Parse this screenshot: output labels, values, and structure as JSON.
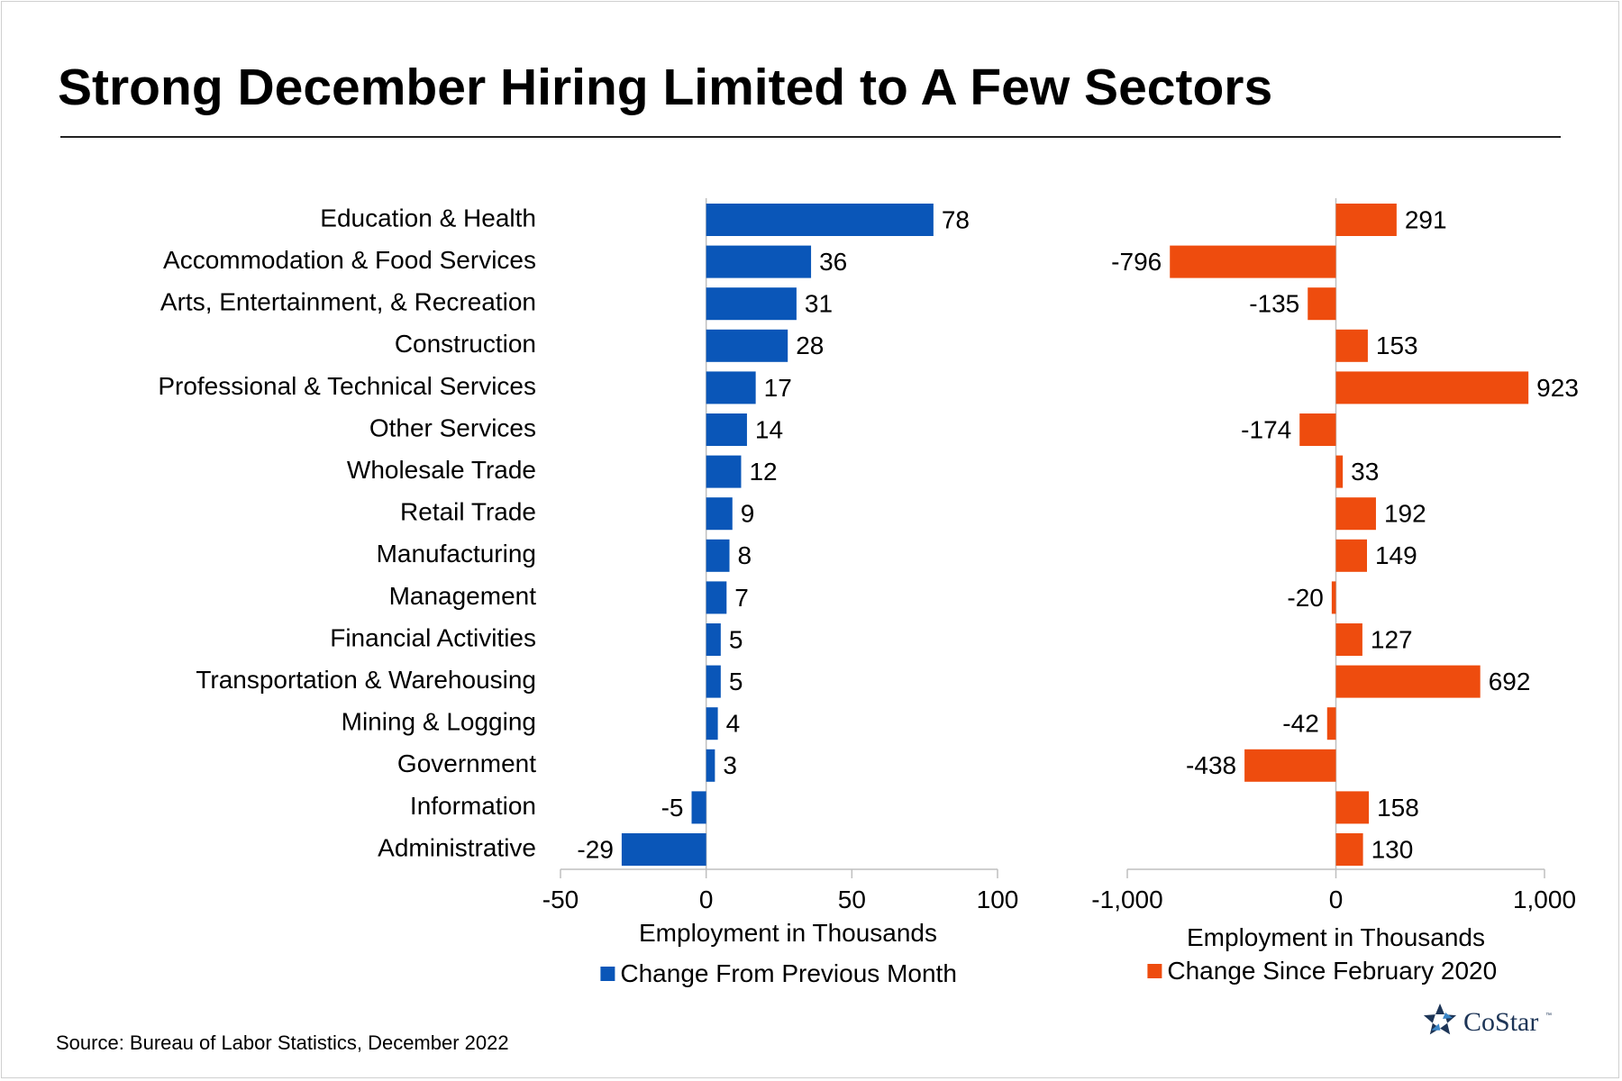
{
  "title": "Strong December Hiring Limited to A Few Sectors",
  "source": "Source: Bureau of Labor Statistics, December 2022",
  "logo_text": "CoStar",
  "logo_tm": "™",
  "chart_data": [
    {
      "type": "bar",
      "orientation": "horizontal",
      "categories": [
        "Education & Health",
        "Accommodation & Food Services",
        "Arts, Entertainment, & Recreation",
        "Construction",
        "Professional & Technical Services",
        "Other Services",
        "Wholesale Trade",
        "Retail Trade",
        "Manufacturing",
        "Management",
        "Financial Activities",
        "Transportation & Warehousing",
        "Mining & Logging",
        "Government",
        "Information",
        "Administrative"
      ],
      "series": [
        {
          "name": "Change From Previous Month",
          "values": [
            78,
            36,
            31,
            28,
            17,
            14,
            12,
            9,
            8,
            7,
            5,
            5,
            4,
            3,
            -5,
            -29
          ],
          "color": "#0a56b8"
        }
      ],
      "xlabel": "Employment in Thousands",
      "xlim": [
        -50,
        100
      ],
      "xticks": [
        -50,
        0,
        50,
        100
      ],
      "xtick_labels": [
        "-50",
        "0",
        "50",
        "100"
      ],
      "legend_position": "bottom",
      "grid": false
    },
    {
      "type": "bar",
      "orientation": "horizontal",
      "categories": [
        "Education & Health",
        "Accommodation & Food Services",
        "Arts, Entertainment, & Recreation",
        "Construction",
        "Professional & Technical Services",
        "Other Services",
        "Wholesale Trade",
        "Retail Trade",
        "Manufacturing",
        "Management",
        "Financial Activities",
        "Transportation & Warehousing",
        "Mining & Logging",
        "Government",
        "Information",
        "Administrative"
      ],
      "series": [
        {
          "name": "Change Since February 2020",
          "values": [
            291,
            -796,
            -135,
            153,
            923,
            -174,
            33,
            192,
            149,
            -20,
            127,
            692,
            -42,
            -438,
            158,
            130
          ],
          "color": "#ee4c0e"
        }
      ],
      "xlabel": "Employment in Thousands",
      "xlim": [
        -1000,
        1000
      ],
      "xticks": [
        -1000,
        0,
        1000
      ],
      "xtick_labels": [
        "-1,000",
        "0",
        "1,000"
      ],
      "legend_position": "bottom",
      "grid": false
    }
  ]
}
